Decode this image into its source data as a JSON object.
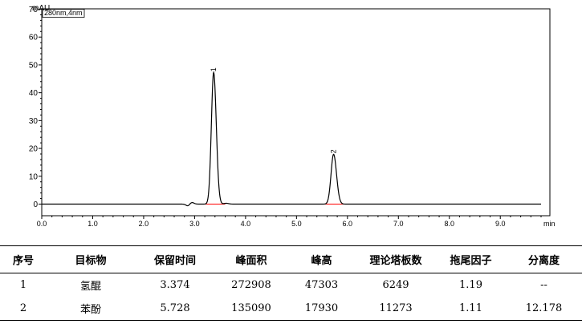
{
  "chart_data": {
    "type": "line",
    "detector_label": "280nm,4nm",
    "ylabel": "mAU",
    "xlabel": "min",
    "xlim": [
      0.0,
      9.8
    ],
    "ylim": [
      -3,
      70
    ],
    "x_ticks": [
      0.0,
      1.0,
      2.0,
      3.0,
      4.0,
      5.0,
      6.0,
      7.0,
      8.0,
      9.0
    ],
    "x_tick_labels": [
      "0.0",
      "1.0",
      "2.0",
      "3.0",
      "4.0",
      "5.0",
      "6.0",
      "7.0",
      "8.0",
      "9.0"
    ],
    "y_ticks": [
      0,
      10,
      20,
      30,
      40,
      50,
      60,
      70
    ],
    "y_tick_labels": [
      "0",
      "10",
      "20",
      "30",
      "40",
      "50",
      "60",
      "70"
    ],
    "peaks": [
      {
        "label": "1",
        "time": 3.374,
        "height": 47.3,
        "width": 0.045
      },
      {
        "label": "2",
        "time": 5.728,
        "height": 17.9,
        "width": 0.05
      }
    ],
    "minor_features": [
      {
        "time": 2.93,
        "height": 0.9,
        "width": 0.04
      },
      {
        "time": 3.62,
        "height": 0.3,
        "width": 0.04
      }
    ],
    "baseline_dip": {
      "time": 2.88,
      "depth": -0.9,
      "width": 0.04
    },
    "integration_baselines": [
      [
        3.15,
        3.6
      ],
      [
        5.45,
        6.05
      ]
    ],
    "colors": {
      "trace": "#000000",
      "baseline": "#ff0000"
    }
  },
  "table": {
    "headers": [
      "序号",
      "目标物",
      "保留时间",
      "峰面积",
      "峰高",
      "理论塔板数",
      "拖尾因子",
      "分离度"
    ],
    "rows": [
      [
        "1",
        "氢醌",
        "3.374",
        "272908",
        "47303",
        "6249",
        "1.19",
        "--"
      ],
      [
        "2",
        "苯酚",
        "5.728",
        "135090",
        "17930",
        "11273",
        "1.11",
        "12.178"
      ]
    ]
  }
}
